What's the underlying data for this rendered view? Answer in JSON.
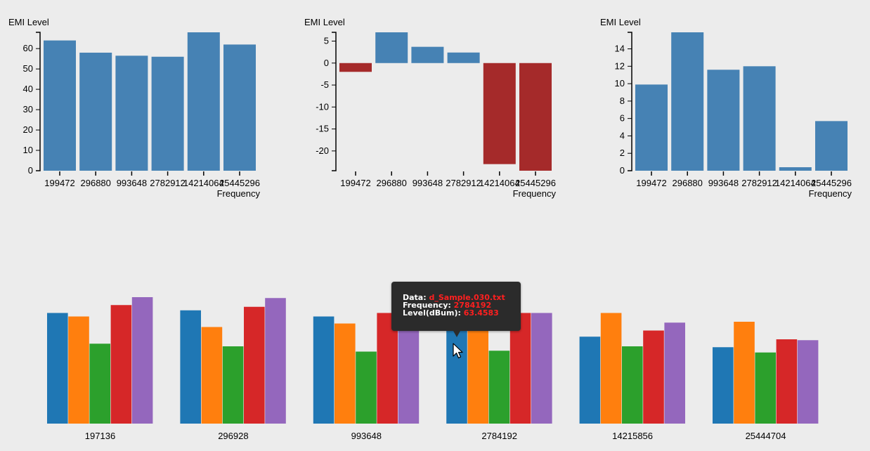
{
  "colors": {
    "positive": "#4682b4",
    "negative": "#a52a2a",
    "group_series": [
      "#1f77b4",
      "#ff7f0e",
      "#2ca02c",
      "#d62728",
      "#9467bd"
    ]
  },
  "chart_data": [
    {
      "type": "bar",
      "ylabel": "EMI Level",
      "xlabel": "Frequency",
      "categories": [
        "199472",
        "296880",
        "993648",
        "2782912",
        "14214064",
        "25445296"
      ],
      "values": [
        64,
        58,
        56.5,
        56,
        68,
        62
      ],
      "ylim": [
        0,
        68
      ],
      "yticks": [
        0,
        10,
        20,
        30,
        40,
        50,
        60
      ]
    },
    {
      "type": "bar",
      "ylabel": "EMI Level",
      "xlabel": "Frequency",
      "categories": [
        "199472",
        "296880",
        "993648",
        "2782912",
        "14214064",
        "25445296"
      ],
      "values": [
        -2,
        7,
        3.7,
        2.4,
        -23,
        -24.5
      ],
      "ylim": [
        -24.5,
        7
      ],
      "yticks": [
        -20,
        -15,
        -10,
        -5,
        0,
        5
      ]
    },
    {
      "type": "bar",
      "ylabel": "EMI Level",
      "xlabel": "Frequency",
      "categories": [
        "199472",
        "296880",
        "993648",
        "2782912",
        "14214064",
        "25445296"
      ],
      "values": [
        9.9,
        15.9,
        11.6,
        12,
        0.4,
        5.7
      ],
      "ylim": [
        0,
        15.9
      ],
      "yticks": [
        0,
        2,
        4,
        6,
        8,
        10,
        12,
        14
      ]
    },
    {
      "type": "bar",
      "grouped": true,
      "categories": [
        "197136",
        "296928",
        "993648",
        "2784192",
        "14215856",
        "25444704"
      ],
      "series_count": 5,
      "values": [
        [
          63,
          61,
          45.5,
          67.5,
          72
        ],
        [
          64.5,
          55,
          44,
          66.5,
          71.5
        ],
        [
          61,
          57,
          41,
          63,
          68.5
        ],
        [
          59.5,
          57.5,
          41.5,
          63,
          63
        ],
        [
          49.5,
          63,
          44,
          53,
          57.5
        ],
        [
          43.5,
          58,
          40.5,
          48,
          47.5
        ]
      ],
      "ylim": [
        0,
        80
      ]
    }
  ],
  "tooltip": {
    "data_label": "Data:",
    "data_value": "d_Sample.030.txt",
    "freq_label": "Frequency:",
    "freq_value": "2784192",
    "level_label": "Level(dBum):",
    "level_value": "63.4583"
  }
}
